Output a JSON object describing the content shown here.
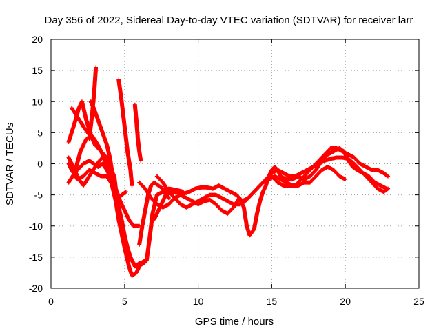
{
  "chart_data": {
    "type": "scatter",
    "title": "Day 356 of 2022, Sidereal Day-to-day VTEC variation (SDTVAR) for receiver larr",
    "xlabel": "GPS time / hours",
    "ylabel": "SDTVAR / TECUs",
    "xlim": [
      0,
      25
    ],
    "ylim": [
      -20,
      20
    ],
    "x_ticks": [
      0,
      5,
      10,
      15,
      20,
      25
    ],
    "y_ticks": [
      -20,
      -15,
      -10,
      -5,
      0,
      5,
      10,
      15,
      20
    ],
    "grid": true,
    "marker": "+",
    "series_color": "#ff0000",
    "series": [
      {
        "name": "trace-1",
        "points": [
          [
            1.2,
            3.5
          ],
          [
            1.6,
            6.5
          ],
          [
            1.9,
            9.0
          ],
          [
            2.1,
            10.0
          ],
          [
            2.4,
            7.0
          ],
          [
            2.8,
            4.0
          ],
          [
            3.2,
            2.5
          ],
          [
            3.6,
            1.5
          ],
          [
            4.0,
            0.0
          ],
          [
            4.2,
            -2.5
          ],
          [
            4.3,
            -5.0
          ]
        ]
      },
      {
        "name": "trace-2",
        "points": [
          [
            1.2,
            0.0
          ],
          [
            1.4,
            -1.0
          ],
          [
            1.8,
            -2.5
          ],
          [
            2.2,
            -2.0
          ],
          [
            2.6,
            -1.0
          ],
          [
            3.0,
            -1.5
          ],
          [
            3.4,
            -2.0
          ],
          [
            3.8,
            -2.0
          ],
          [
            4.2,
            -3.5
          ],
          [
            4.6,
            -8.0
          ],
          [
            5.0,
            -12.0
          ],
          [
            5.4,
            -15.0
          ],
          [
            5.7,
            -16.5
          ],
          [
            6.0,
            -16.0
          ],
          [
            6.3,
            -15.8
          ],
          [
            6.5,
            -15.5
          ],
          [
            6.7,
            -12.0
          ],
          [
            6.9,
            -8.0
          ],
          [
            7.2,
            -5.0
          ],
          [
            7.6,
            -4.5
          ],
          [
            8.0,
            -4.0
          ],
          [
            8.5,
            -4.2
          ],
          [
            9.0,
            -4.5
          ]
        ]
      },
      {
        "name": "trace-3",
        "points": [
          [
            1.2,
            -3.0
          ],
          [
            1.6,
            -1.5
          ],
          [
            2.0,
            2.0
          ],
          [
            2.4,
            4.0
          ],
          [
            2.8,
            4.5
          ],
          [
            3.2,
            3.0
          ],
          [
            3.6,
            1.0
          ],
          [
            4.0,
            -2.0
          ],
          [
            4.4,
            -6.0
          ],
          [
            4.8,
            -5.0
          ],
          [
            5.1,
            -4.5
          ]
        ]
      },
      {
        "name": "trace-4",
        "points": [
          [
            1.8,
            -1.0
          ],
          [
            2.2,
            0.0
          ],
          [
            2.6,
            0.5
          ],
          [
            2.9,
            0.0
          ],
          [
            3.2,
            -0.5
          ],
          [
            3.5,
            0.0
          ],
          [
            3.8,
            -1.0
          ],
          [
            4.2,
            -3.0
          ],
          [
            4.6,
            -9.0
          ],
          [
            5.0,
            -13.5
          ],
          [
            5.3,
            -16.5
          ],
          [
            5.5,
            -18.0
          ],
          [
            5.8,
            -17.5
          ],
          [
            6.1,
            -16.0
          ],
          [
            6.4,
            -15.5
          ]
        ]
      },
      {
        "name": "trace-5",
        "points": [
          [
            1.4,
            9.0
          ],
          [
            1.8,
            7.5
          ],
          [
            2.2,
            6.0
          ],
          [
            2.5,
            5.0
          ],
          [
            2.8,
            4.0
          ],
          [
            3.0,
            3.0
          ]
        ]
      },
      {
        "name": "trace-6",
        "points": [
          [
            2.6,
            4.0
          ],
          [
            2.8,
            8.0
          ],
          [
            2.95,
            12.0
          ],
          [
            3.05,
            15.5
          ]
        ]
      },
      {
        "name": "trace-7",
        "points": [
          [
            1.2,
            1.0
          ],
          [
            1.5,
            -0.5
          ],
          [
            1.9,
            -2.5
          ],
          [
            2.2,
            -3.5
          ],
          [
            2.6,
            -2.0
          ],
          [
            3.0,
            -0.5
          ],
          [
            3.3,
            0.5
          ],
          [
            3.5,
            1.0
          ],
          [
            3.8,
            1.0
          ],
          [
            4.1,
            -1.0
          ],
          [
            4.3,
            -2.0
          ],
          [
            4.5,
            -6.0
          ],
          [
            4.8,
            -9.0
          ],
          [
            5.0,
            -11.5
          ],
          [
            5.3,
            -14.5
          ],
          [
            5.6,
            -16.0
          ],
          [
            5.9,
            -16.5
          ],
          [
            6.3,
            -16.0
          ],
          [
            6.5,
            -15.5
          ]
        ]
      },
      {
        "name": "trace-8",
        "points": [
          [
            2.7,
            10.0
          ],
          [
            2.9,
            9.0
          ],
          [
            3.2,
            7.0
          ],
          [
            3.5,
            5.0
          ],
          [
            3.8,
            3.0
          ],
          [
            4.0,
            1.0
          ],
          [
            4.2,
            -2.0
          ],
          [
            4.4,
            -4.0
          ],
          [
            4.7,
            -6.0
          ],
          [
            5.0,
            -7.5
          ],
          [
            5.3,
            -9.0
          ],
          [
            5.6,
            -10.0
          ],
          [
            6.0,
            -10.0
          ]
        ]
      },
      {
        "name": "trace-9",
        "points": [
          [
            4.6,
            13.5
          ],
          [
            4.8,
            10.0
          ],
          [
            5.0,
            6.0
          ],
          [
            5.2,
            2.0
          ],
          [
            5.4,
            -1.0
          ],
          [
            5.5,
            -3.5
          ]
        ]
      },
      {
        "name": "trace-10",
        "points": [
          [
            5.7,
            9.5
          ],
          [
            5.8,
            7.0
          ],
          [
            5.9,
            4.0
          ],
          [
            6.0,
            2.0
          ],
          [
            6.1,
            0.5
          ]
        ]
      },
      {
        "name": "trace-11",
        "points": [
          [
            6.0,
            -13.0
          ],
          [
            6.2,
            -10.0
          ],
          [
            6.4,
            -7.5
          ],
          [
            6.6,
            -5.0
          ],
          [
            6.8,
            -3.5
          ],
          [
            7.0,
            -3.0
          ],
          [
            7.3,
            -3.5
          ],
          [
            7.6,
            -4.0
          ],
          [
            7.8,
            -5.0
          ],
          [
            8.0,
            -5.5
          ]
        ]
      },
      {
        "name": "trace-12",
        "points": [
          [
            6.0,
            -3.0
          ],
          [
            6.4,
            -4.0
          ],
          [
            6.8,
            -5.5
          ],
          [
            7.2,
            -6.5
          ],
          [
            7.6,
            -7.0
          ],
          [
            8.0,
            -6.5
          ],
          [
            8.4,
            -5.5
          ],
          [
            8.8,
            -5.0
          ],
          [
            9.2,
            -5.5
          ],
          [
            9.6,
            -6.0
          ],
          [
            10.0,
            -6.5
          ],
          [
            10.4,
            -6.0
          ],
          [
            10.8,
            -5.8
          ],
          [
            11.2,
            -6.5
          ],
          [
            11.6,
            -7.5
          ],
          [
            12.0,
            -8.0
          ],
          [
            12.4,
            -7.0
          ],
          [
            12.8,
            -5.5
          ],
          [
            13.1,
            -7.0
          ],
          [
            13.3,
            -10.0
          ],
          [
            13.5,
            -11.5
          ],
          [
            13.8,
            -10.5
          ],
          [
            14.0,
            -8.0
          ],
          [
            14.2,
            -6.0
          ],
          [
            14.4,
            -4.5
          ],
          [
            14.6,
            -3.5
          ],
          [
            14.8,
            -2.0
          ],
          [
            15.0,
            -1.0
          ],
          [
            15.2,
            -0.5
          ],
          [
            15.4,
            -1.0
          ],
          [
            15.6,
            -2.0
          ],
          [
            16.0,
            -2.5
          ],
          [
            16.4,
            -2.5
          ],
          [
            16.8,
            -2.0
          ],
          [
            17.2,
            -2.5
          ],
          [
            17.6,
            -2.0
          ],
          [
            18.0,
            -1.0
          ],
          [
            18.4,
            0.5
          ],
          [
            18.8,
            1.5
          ],
          [
            19.2,
            2.0
          ],
          [
            19.6,
            2.5
          ],
          [
            19.9,
            2.0
          ],
          [
            20.2,
            0.5
          ],
          [
            20.5,
            -0.5
          ],
          [
            20.8,
            -1.0
          ],
          [
            21.2,
            -1.5
          ],
          [
            21.6,
            -2.0
          ],
          [
            22.0,
            -3.0
          ],
          [
            22.4,
            -3.5
          ],
          [
            22.8,
            -4.0
          ]
        ]
      },
      {
        "name": "trace-13",
        "points": [
          [
            7.0,
            -9.0
          ],
          [
            7.4,
            -7.0
          ],
          [
            7.8,
            -5.0
          ],
          [
            8.2,
            -4.5
          ],
          [
            8.6,
            -4.5
          ],
          [
            9.0,
            -4.8
          ],
          [
            9.4,
            -4.5
          ],
          [
            9.8,
            -4.0
          ],
          [
            10.2,
            -3.8
          ],
          [
            10.6,
            -3.8
          ],
          [
            11.0,
            -4.0
          ],
          [
            11.4,
            -3.5
          ],
          [
            11.8,
            -4.0
          ],
          [
            12.2,
            -4.5
          ],
          [
            12.6,
            -5.0
          ],
          [
            13.0,
            -6.0
          ],
          [
            13.4,
            -5.5
          ],
          [
            13.8,
            -4.5
          ],
          [
            14.2,
            -3.5
          ],
          [
            14.6,
            -2.5
          ],
          [
            15.0,
            -1.5
          ],
          [
            15.4,
            -1.0
          ],
          [
            15.8,
            -1.5
          ],
          [
            16.2,
            -2.0
          ],
          [
            16.6,
            -2.0
          ],
          [
            17.0,
            -1.5
          ],
          [
            17.4,
            -1.0
          ],
          [
            17.8,
            -0.5
          ],
          [
            18.2,
            0.0
          ],
          [
            18.6,
            0.5
          ],
          [
            19.0,
            0.8
          ],
          [
            19.4,
            1.0
          ],
          [
            19.8,
            1.0
          ],
          [
            20.2,
            0.8
          ],
          [
            20.6,
            0.0
          ],
          [
            21.0,
            -1.0
          ],
          [
            21.4,
            -2.0
          ],
          [
            21.8,
            -3.0
          ],
          [
            22.2,
            -4.0
          ],
          [
            22.6,
            -4.5
          ],
          [
            22.9,
            -4.0
          ]
        ]
      },
      {
        "name": "trace-14",
        "points": [
          [
            7.2,
            -2.0
          ],
          [
            7.6,
            -3.0
          ],
          [
            8.0,
            -4.5
          ],
          [
            8.4,
            -5.5
          ],
          [
            8.8,
            -6.5
          ],
          [
            9.2,
            -7.0
          ],
          [
            9.6,
            -6.5
          ],
          [
            10.0,
            -6.0
          ],
          [
            10.4,
            -5.5
          ],
          [
            10.8,
            -5.0
          ],
          [
            11.2,
            -5.0
          ],
          [
            11.6,
            -5.5
          ],
          [
            12.0,
            -6.0
          ],
          [
            12.4,
            -6.5
          ],
          [
            12.8,
            -6.5
          ],
          [
            13.2,
            -6.0
          ],
          [
            13.6,
            -5.0
          ],
          [
            14.0,
            -4.0
          ],
          [
            14.4,
            -3.0
          ],
          [
            14.8,
            -2.5
          ],
          [
            15.2,
            -2.0
          ],
          [
            15.6,
            -2.5
          ],
          [
            16.0,
            -3.0
          ],
          [
            16.4,
            -3.5
          ],
          [
            16.8,
            -3.5
          ],
          [
            17.2,
            -3.0
          ],
          [
            17.6,
            -3.0
          ],
          [
            18.0,
            -2.0
          ],
          [
            18.4,
            -1.0
          ],
          [
            18.8,
            -0.5
          ],
          [
            19.2,
            -1.0
          ],
          [
            19.6,
            -2.0
          ],
          [
            20.0,
            -2.5
          ]
        ]
      },
      {
        "name": "trace-15",
        "points": [
          [
            15.0,
            -2.0
          ],
          [
            15.4,
            -3.0
          ],
          [
            15.8,
            -3.5
          ],
          [
            16.2,
            -3.5
          ],
          [
            16.6,
            -3.5
          ],
          [
            17.0,
            -2.5
          ],
          [
            17.4,
            -1.5
          ],
          [
            17.8,
            -0.5
          ],
          [
            18.2,
            0.5
          ],
          [
            18.6,
            1.5
          ],
          [
            19.0,
            2.5
          ],
          [
            19.4,
            2.5
          ],
          [
            19.8,
            2.0
          ],
          [
            20.2,
            1.5
          ],
          [
            20.6,
            1.0
          ],
          [
            21.0,
            0.0
          ],
          [
            21.4,
            -0.5
          ],
          [
            21.8,
            -1.0
          ],
          [
            22.2,
            -1.0
          ],
          [
            22.6,
            -1.5
          ],
          [
            22.9,
            -2.0
          ]
        ]
      }
    ]
  }
}
